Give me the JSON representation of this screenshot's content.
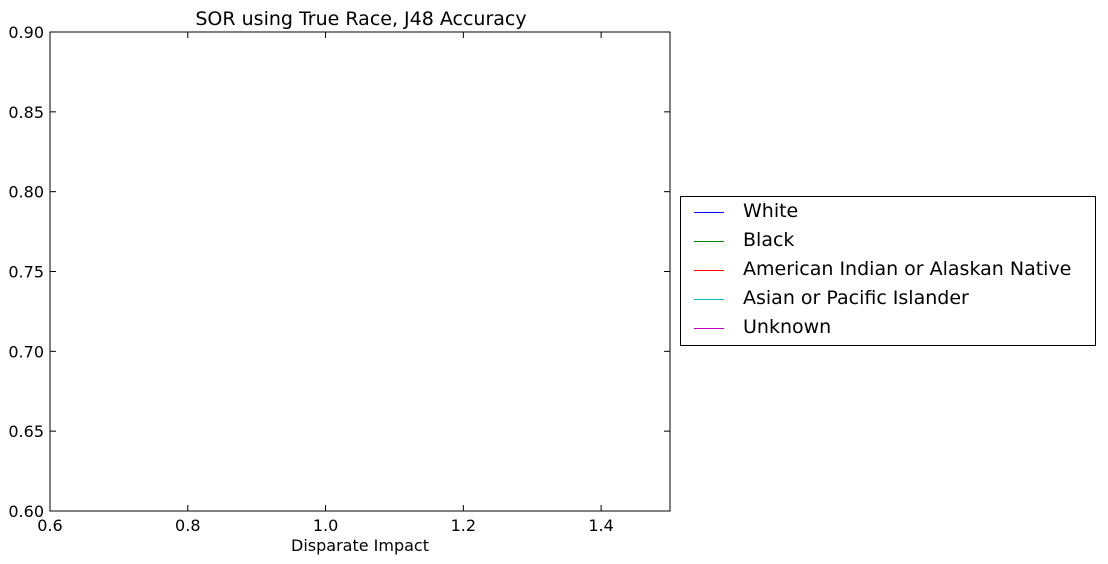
{
  "chart_data": {
    "type": "line",
    "title": "SOR using True Race, J48 Accuracy",
    "xlabel": "Disparate Impact",
    "ylabel": "",
    "xlim": [
      0.6,
      1.5
    ],
    "ylim": [
      0.6,
      0.9
    ],
    "xticks": [
      0.6,
      0.8,
      1.0,
      1.2,
      1.4
    ],
    "xtick_labels": [
      "0.6",
      "0.8",
      "1.0",
      "1.2",
      "1.4"
    ],
    "yticks": [
      0.6,
      0.65,
      0.7,
      0.75,
      0.8,
      0.85,
      0.9
    ],
    "ytick_labels": [
      "0.60",
      "0.65",
      "0.70",
      "0.75",
      "0.80",
      "0.85",
      "0.90"
    ],
    "grid": false,
    "legend_position": "outside-right",
    "series": [
      {
        "name": "White",
        "color": "#0000ff",
        "x": [],
        "y": []
      },
      {
        "name": "Black",
        "color": "#008000",
        "x": [],
        "y": []
      },
      {
        "name": "American Indian or Alaskan Native",
        "color": "#ff0000",
        "x": [],
        "y": []
      },
      {
        "name": "Asian or Pacific Islander",
        "color": "#00bfbf",
        "x": [],
        "y": []
      },
      {
        "name": "Unknown",
        "color": "#bf00bf",
        "x": [],
        "y": []
      }
    ]
  }
}
